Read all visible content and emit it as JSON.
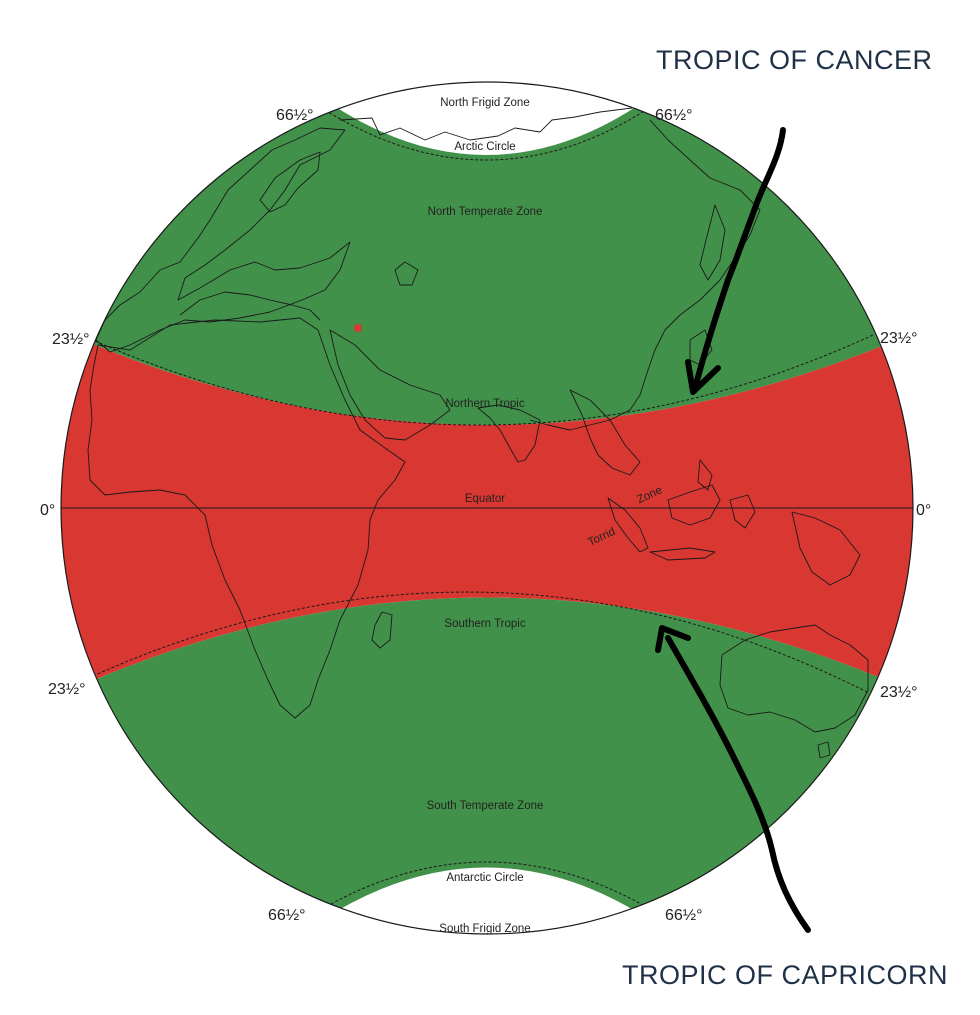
{
  "callouts": {
    "top": "TROPIC OF CANCER",
    "bottom": "TROPIC OF CAPRICORN"
  },
  "zones": {
    "north_frigid": "North Frigid Zone",
    "arctic_circle": "Arctic Circle",
    "north_temperate": "North Temperate Zone",
    "northern_tropic": "Northern Tropic",
    "equator": "Equator",
    "torrid_1": "Torrid",
    "torrid_2": "Zone",
    "southern_tropic": "Southern Tropic",
    "south_temperate": "South Temperate Zone",
    "antarctic_circle": "Antarctic Circle",
    "south_frigid": "South Frigid Zone"
  },
  "degrees": {
    "arctic_left": "66½°",
    "arctic_right": "66½°",
    "north_tropic_left": "23½°",
    "north_tropic_right": "23½°",
    "equator_left": "0°",
    "equator_right": "0°",
    "south_tropic_left": "23½°",
    "south_tropic_right": "23½°",
    "antarctic_left": "66½°",
    "antarctic_right": "66½°"
  },
  "colors": {
    "temperate": "#42914a",
    "torrid": "#d93732",
    "frigid": "#ffffff",
    "outline": "#1a1a1a",
    "marker": "#d93732",
    "arrow": "#000000",
    "callout_text": "#1f3147"
  }
}
